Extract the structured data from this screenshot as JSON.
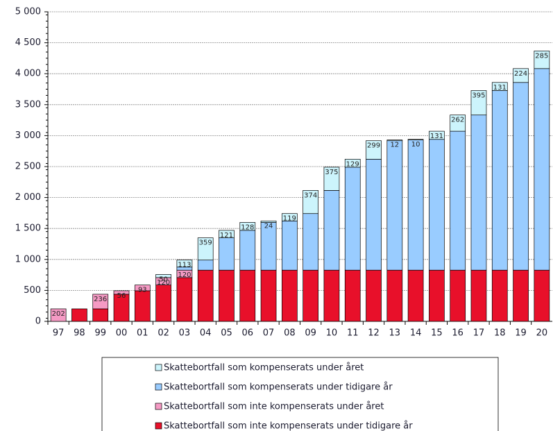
{
  "chart_data": {
    "type": "stacked_bar",
    "categories": [
      "97",
      "98",
      "99",
      "00",
      "01",
      "02",
      "03",
      "04",
      "05",
      "06",
      "07",
      "08",
      "09",
      "10",
      "11",
      "12",
      "13",
      "14",
      "15",
      "16",
      "17",
      "18",
      "19",
      "20"
    ],
    "series": [
      {
        "name": "Skattebortfall som inte kompenserats under tidigare år",
        "color": "#e8102a",
        "labels": false,
        "values": [
          null,
          202,
          202,
          438,
          494,
          587,
          707,
          827,
          827,
          827,
          827,
          827,
          827,
          827,
          827,
          827,
          827,
          827,
          827,
          827,
          827,
          827,
          827,
          827
        ]
      },
      {
        "name": "Skattebortfall som inte kompenserats under året",
        "color": "#f59ac4",
        "labels": true,
        "values": [
          202,
          null,
          236,
          56,
          93,
          120,
          120,
          null,
          null,
          null,
          null,
          null,
          null,
          null,
          null,
          null,
          null,
          null,
          null,
          null,
          null,
          null,
          null,
          null
        ]
      },
      {
        "name": "Skattebortfall som kompenserats under tidigare år",
        "color": "#99ccff",
        "labels": false,
        "values": [
          null,
          null,
          null,
          null,
          null,
          null,
          50,
          163,
          522,
          643,
          771,
          795,
          914,
          1288,
          1663,
          1792,
          2091,
          2103,
          2113,
          2244,
          2506,
          2901,
          3032,
          3256
        ]
      },
      {
        "name": "Skattebortfall som kompenserats under året",
        "color": "#ccf4fc",
        "labels": true,
        "values": [
          null,
          null,
          null,
          null,
          null,
          50,
          113,
          359,
          121,
          128,
          24,
          119,
          374,
          375,
          129,
          299,
          12,
          10,
          131,
          262,
          395,
          131,
          224,
          285
        ]
      }
    ],
    "ylim": [
      0,
      5000
    ],
    "yticks": [
      0,
      500,
      {
        "value": 1000,
        "label": "1 000"
      },
      {
        "value": 1500,
        "label": "1 500"
      },
      {
        "value": 2000,
        "label": "2 000"
      },
      {
        "value": 2500,
        "label": "2 500"
      },
      {
        "value": 3000,
        "label": "3 000"
      },
      {
        "value": 3500,
        "label": "3 500"
      },
      {
        "value": 4000,
        "label": "4 000"
      },
      {
        "value": 4500,
        "label": "4 500"
      },
      {
        "value": 5000,
        "label": "5 000"
      }
    ],
    "grid": true
  }
}
